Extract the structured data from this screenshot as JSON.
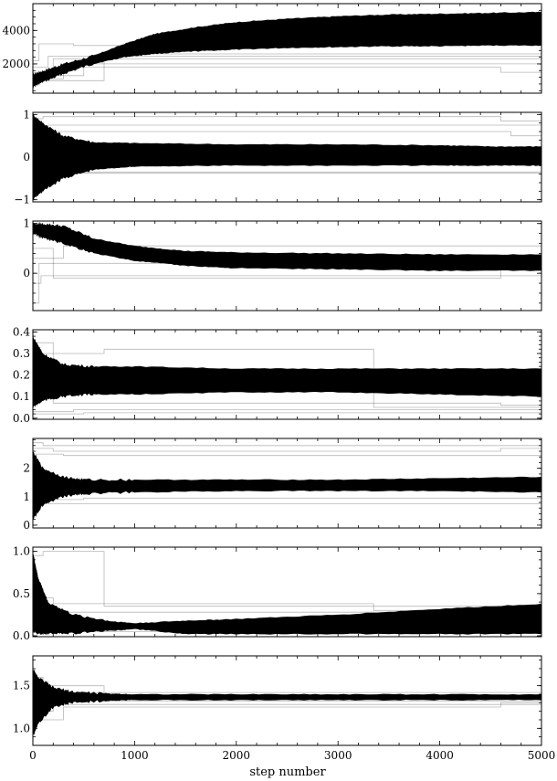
{
  "chart_data": {
    "type": "line",
    "description_free": true,
    "xlabel": "step number",
    "xlim": [
      0,
      5000
    ],
    "xticks": [
      0,
      1000,
      2000,
      3000,
      4000,
      5000
    ],
    "xtick_labels": [
      "0",
      "1000",
      "2000",
      "3000",
      "4000",
      "5000"
    ],
    "panels": [
      {
        "ylim": [
          250,
          5600
        ],
        "yticks": [
          2000,
          4000
        ],
        "ytick_labels": [
          "2000",
          "4000"
        ],
        "bands": [
          {
            "x": [
              0,
              100,
              300,
              600,
              900,
              1200,
              1600,
              2000,
              2500,
              3000,
              3500,
              4000,
              4500,
              5000
            ],
            "upper": [
              1400,
              1600,
              2000,
              2500,
              3200,
              3800,
              4200,
              4500,
              4700,
              4850,
              4950,
              5000,
              5050,
              5100
            ],
            "lower": [
              600,
              900,
              1400,
              2000,
              2400,
              2600,
              2750,
              2850,
              2950,
              3000,
              3050,
              3050,
              3100,
              3100
            ]
          }
        ],
        "walkers": [
          {
            "x": [
              0,
              60,
              60,
              400,
              400,
              5000
            ],
            "y": [
              2200,
              2200,
              3200,
              3200,
              3100,
              3100
            ]
          },
          {
            "x": [
              0,
              200,
              200,
              5000
            ],
            "y": [
              1500,
              1500,
              2300,
              2300
            ]
          },
          {
            "x": [
              0,
              300,
              300,
              5000
            ],
            "y": [
              1100,
              1100,
              2000,
              2000
            ]
          },
          {
            "x": [
              0,
              500,
              500,
              4600,
              4600,
              5000
            ],
            "y": [
              1300,
              1300,
              1800,
              1800,
              1500,
              1500
            ]
          },
          {
            "x": [
              0,
              150,
              150,
              5000
            ],
            "y": [
              1800,
              1800,
              2450,
              2450
            ]
          },
          {
            "x": [
              0,
              700,
              700,
              5000
            ],
            "y": [
              1000,
              1000,
              2600,
              2600
            ]
          }
        ]
      },
      {
        "ylim": [
          -1.05,
          1.05
        ],
        "yticks": [
          -1,
          0,
          1
        ],
        "ytick_labels": [
          "−1",
          "0",
          "1"
        ],
        "bands": [
          {
            "x": [
              0,
              100,
              300,
              600,
              1000,
              2000,
              3000,
              4000,
              4500,
              5000
            ],
            "upper": [
              1.0,
              0.8,
              0.5,
              0.35,
              0.33,
              0.3,
              0.3,
              0.28,
              0.25,
              0.25
            ],
            "lower": [
              -1.0,
              -0.8,
              -0.5,
              -0.3,
              -0.22,
              -0.2,
              -0.2,
              -0.2,
              -0.2,
              -0.2
            ]
          },
          {
            "x": [
              0,
              300,
              700,
              1000,
              1500,
              2000,
              3000,
              4000,
              4500,
              5000
            ],
            "upper": [
              0.6,
              0.3,
              0.32,
              0.31,
              0.3,
              0.29,
              0.28,
              0.25,
              0.2,
              0.15
            ],
            "lower": [
              -0.6,
              -0.3,
              -0.25,
              -0.22,
              -0.2,
              -0.18,
              -0.15,
              -0.1,
              -0.05,
              -0.2
            ]
          }
        ],
        "walkers": [
          {
            "x": [
              0,
              100,
              100,
              4600,
              4600,
              5000
            ],
            "y": [
              0.9,
              0.9,
              0.95,
              0.95,
              0.85,
              0.85
            ]
          },
          {
            "x": [
              0,
              150,
              150,
              5000
            ],
            "y": [
              0.7,
              0.7,
              0.75,
              0.75
            ]
          },
          {
            "x": [
              0,
              200,
              200,
              4700,
              4700,
              5000
            ],
            "y": [
              0.55,
              0.55,
              0.6,
              0.6,
              0.5,
              0.5
            ]
          },
          {
            "x": [
              0,
              300,
              300,
              5000
            ],
            "y": [
              -0.3,
              -0.3,
              -0.35,
              -0.35
            ]
          },
          {
            "x": [
              0,
              400,
              400,
              5000
            ],
            "y": [
              -0.4,
              -0.4,
              -0.38,
              -0.38
            ]
          }
        ]
      },
      {
        "ylim": [
          -0.75,
          1.05
        ],
        "yticks": [
          0,
          1
        ],
        "ytick_labels": [
          "0",
          "1"
        ],
        "bands": [
          {
            "x": [
              0,
              100,
              300,
              600,
              1000,
              1500,
              2000,
              3000,
              4000,
              5000
            ],
            "upper": [
              1.0,
              1.0,
              0.95,
              0.7,
              0.55,
              0.45,
              0.42,
              0.4,
              0.38,
              0.38
            ],
            "lower": [
              0.8,
              0.7,
              0.6,
              0.4,
              0.25,
              0.15,
              0.1,
              0.08,
              0.05,
              0.05
            ]
          }
        ],
        "walkers": [
          {
            "x": [
              0,
              80,
              80,
              5000
            ],
            "y": [
              -0.2,
              -0.2,
              -0.05,
              -0.05
            ]
          },
          {
            "x": [
              0,
              200,
              200,
              4600,
              4600,
              5000
            ],
            "y": [
              0.5,
              0.5,
              -0.1,
              -0.1,
              0.1,
              0.1
            ]
          },
          {
            "x": [
              0,
              300,
              300,
              5000
            ],
            "y": [
              0.3,
              0.3,
              0.55,
              0.55
            ]
          },
          {
            "x": [
              0,
              60,
              60,
              5000
            ],
            "y": [
              -0.6,
              -0.6,
              0.2,
              0.2
            ]
          }
        ]
      },
      {
        "ylim": [
          -0.005,
          0.41
        ],
        "yticks": [
          0.0,
          0.1,
          0.2,
          0.3,
          0.4
        ],
        "ytick_labels": [
          "0.0",
          "0.1",
          "0.2",
          "0.3",
          "0.4"
        ],
        "bands": [
          {
            "x": [
              0,
              100,
              300,
              600,
              1000,
              2000,
              3000,
              4000,
              5000
            ],
            "upper": [
              0.38,
              0.3,
              0.25,
              0.24,
              0.24,
              0.23,
              0.23,
              0.23,
              0.23
            ],
            "lower": [
              0.05,
              0.08,
              0.1,
              0.11,
              0.11,
              0.12,
              0.12,
              0.11,
              0.1
            ]
          },
          {
            "x": [
              0,
              300,
              700,
              1000,
              1500,
              2000,
              3000,
              4000,
              5000
            ],
            "upper": [
              0.3,
              0.22,
              0.2,
              0.19,
              0.2,
              0.21,
              0.21,
              0.2,
              0.17
            ],
            "lower": [
              0.1,
              0.14,
              0.13,
              0.12,
              0.12,
              0.125,
              0.13,
              0.14,
              0.12
            ]
          }
        ],
        "walkers": [
          {
            "x": [
              0,
              700,
              700,
              3350,
              3350,
              5000
            ],
            "y": [
              0.3,
              0.3,
              0.32,
              0.32,
              0.05,
              0.05
            ]
          },
          {
            "x": [
              0,
              400,
              400,
              5000
            ],
            "y": [
              0.03,
              0.03,
              0.04,
              0.04
            ]
          },
          {
            "x": [
              0,
              200,
              200,
              4600,
              4600,
              5000
            ],
            "y": [
              0.35,
              0.35,
              0.07,
              0.07,
              0.06,
              0.06
            ]
          },
          {
            "x": [
              0,
              500,
              500,
              5000
            ],
            "y": [
              0.02,
              0.02,
              0.025,
              0.025
            ]
          }
        ]
      },
      {
        "ylim": [
          -0.1,
          3.05
        ],
        "yticks": [
          0,
          1,
          2
        ],
        "ytick_labels": [
          "0",
          "1",
          "2"
        ],
        "bands": [
          {
            "x": [
              0,
              100,
              300,
              500,
              1000,
              2000,
              3000,
              4000,
              5000
            ],
            "upper": [
              2.6,
              2.0,
              1.7,
              1.6,
              1.6,
              1.6,
              1.6,
              1.65,
              1.7
            ],
            "lower": [
              0.2,
              0.7,
              1.0,
              1.1,
              1.15,
              1.2,
              1.2,
              1.2,
              1.15
            ]
          }
        ],
        "walkers": [
          {
            "x": [
              0,
              100,
              100,
              5000
            ],
            "y": [
              2.9,
              2.9,
              2.8,
              2.8
            ]
          },
          {
            "x": [
              0,
              200,
              200,
              4600,
              4600,
              5000
            ],
            "y": [
              2.7,
              2.7,
              2.6,
              2.6,
              2.7,
              2.7
            ]
          },
          {
            "x": [
              0,
              300,
              300,
              5000
            ],
            "y": [
              2.5,
              2.5,
              2.45,
              2.45
            ]
          },
          {
            "x": [
              0,
              150,
              150,
              5000
            ],
            "y": [
              0.8,
              0.8,
              0.75,
              0.75
            ]
          },
          {
            "x": [
              0,
              500,
              500,
              5000
            ],
            "y": [
              0.9,
              0.9,
              0.95,
              0.95
            ]
          }
        ]
      },
      {
        "ylim": [
          -0.01,
          1.05
        ],
        "yticks": [
          0.0,
          0.5,
          1.0
        ],
        "ytick_labels": [
          "0.0",
          "0.5",
          "1.0"
        ],
        "bands": [
          {
            "x": [
              0,
              50,
              150,
              400,
              800,
              1000,
              1500,
              2000,
              3000,
              4000,
              5000
            ],
            "upper": [
              1.0,
              0.7,
              0.4,
              0.25,
              0.17,
              0.15,
              0.18,
              0.2,
              0.25,
              0.32,
              0.38
            ],
            "lower": [
              0.05,
              0.02,
              0.02,
              0.03,
              0.06,
              0.08,
              0.02,
              0.02,
              0.02,
              0.02,
              0.02
            ]
          }
        ],
        "walkers": [
          {
            "x": [
              0,
              100,
              100,
              700,
              700,
              5000
            ],
            "y": [
              0.95,
              0.95,
              1.0,
              1.0,
              0.35,
              0.35
            ]
          },
          {
            "x": [
              0,
              200,
              200,
              3350,
              3350,
              5000
            ],
            "y": [
              0.45,
              0.45,
              0.38,
              0.38,
              0.3,
              0.3
            ]
          },
          {
            "x": [
              0,
              300,
              300,
              5000
            ],
            "y": [
              0.3,
              0.3,
              0.28,
              0.28
            ]
          },
          {
            "x": [
              0,
              150,
              150,
              5000
            ],
            "y": [
              0.06,
              0.06,
              0.05,
              0.05
            ]
          }
        ]
      },
      {
        "ylim": [
          0.8,
          1.85
        ],
        "yticks": [
          1.0,
          1.5
        ],
        "ytick_labels": [
          "1.0",
          "1.5"
        ],
        "bands": [
          {
            "x": [
              0,
              50,
              200,
              400,
              700,
              1000,
              2000,
              3000,
              4000,
              5000
            ],
            "upper": [
              1.7,
              1.6,
              1.48,
              1.43,
              1.41,
              1.4,
              1.4,
              1.4,
              1.4,
              1.4
            ],
            "lower": [
              0.9,
              1.05,
              1.25,
              1.3,
              1.32,
              1.33,
              1.33,
              1.33,
              1.33,
              1.33
            ]
          }
        ],
        "walkers": [
          {
            "x": [
              0,
              100,
              100,
              700,
              700,
              5000
            ],
            "y": [
              1.6,
              1.6,
              1.5,
              1.5,
              1.32,
              1.32
            ]
          },
          {
            "x": [
              0,
              200,
              200,
              5000
            ],
            "y": [
              1.2,
              1.2,
              1.28,
              1.28
            ]
          },
          {
            "x": [
              0,
              300,
              300,
              4600,
              4600,
              5000
            ],
            "y": [
              1.1,
              1.1,
              1.25,
              1.25,
              1.3,
              1.3
            ]
          },
          {
            "x": [
              0,
              150,
              150,
              5000
            ],
            "y": [
              1.55,
              1.55,
              1.42,
              1.42
            ]
          }
        ]
      }
    ]
  }
}
